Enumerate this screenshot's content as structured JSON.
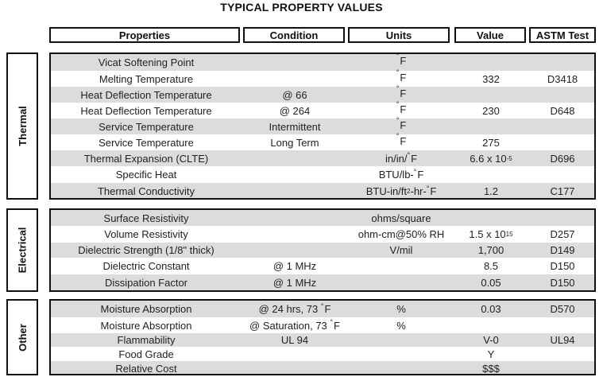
{
  "title": "TYPICAL PROPERTY VALUES",
  "headers": {
    "properties": "Properties",
    "condition": "Condition",
    "units": "Units",
    "value": "Value",
    "astm": "ASTM Test"
  },
  "sections": {
    "thermal": {
      "label": "Thermal",
      "rows": [
        {
          "property": "Vicat Softening Point",
          "condition": "",
          "units": "°F",
          "value": "",
          "astm": ""
        },
        {
          "property": "Melting Temperature",
          "condition": "",
          "units": "°F",
          "value": "332",
          "astm": "D3418"
        },
        {
          "property": "Heat Deflection Temperature",
          "condition": "@ 66",
          "units": "°F",
          "value": "",
          "astm": ""
        },
        {
          "property": "Heat Deflection Temperature",
          "condition": "@ 264",
          "units": "°F",
          "value": "230",
          "astm": "D648"
        },
        {
          "property": "Service Temperature",
          "condition": "Intermittent",
          "units": "°F",
          "value": "",
          "astm": ""
        },
        {
          "property": "Service Temperature",
          "condition": "Long Term",
          "units": "°F",
          "value": "275",
          "astm": ""
        },
        {
          "property": "Thermal Expansion (CLTE)",
          "condition": "",
          "units": "in/in/°F",
          "value": "6.6 x 10-5",
          "astm": "D696"
        },
        {
          "property": "Specific Heat",
          "condition": "",
          "units": "BTU/lb-°F",
          "value": "",
          "astm": ""
        },
        {
          "property": "Thermal Conductivity",
          "condition": "",
          "units": "BTU-in/ft2-hr-°F",
          "value": "1.2",
          "astm": "C177"
        }
      ]
    },
    "electrical": {
      "label": "Electrical",
      "rows": [
        {
          "property": "Surface Resistivity",
          "condition": "",
          "units": "ohms/square",
          "value": "",
          "astm": ""
        },
        {
          "property": "Volume Resistivity",
          "condition": "",
          "units": "ohm-cm@50% RH",
          "value": "1.5 x 1015",
          "astm": "D257"
        },
        {
          "property": "Dielectric Strength (1/8\" thick)",
          "condition": "",
          "units": "V/mil",
          "value": "1,700",
          "astm": "D149"
        },
        {
          "property": "Dielectric Constant",
          "condition": "@ 1 MHz",
          "units": "",
          "value": "8.5",
          "astm": "D150"
        },
        {
          "property": "Dissipation Factor",
          "condition": "@ 1 MHz",
          "units": "",
          "value": "0.05",
          "astm": "D150"
        }
      ]
    },
    "other": {
      "label": "Other",
      "rows": [
        {
          "property": "Moisture Absorption",
          "condition": "@ 24 hrs, 73 °F",
          "units": "%",
          "value": "0.03",
          "astm": "D570"
        },
        {
          "property": "Moisture Absorption",
          "condition": "@ Saturation, 73 °F",
          "units": "%",
          "value": "",
          "astm": ""
        },
        {
          "property": "Flammability",
          "condition": "UL 94",
          "units": "",
          "value": "V-0",
          "astm": "UL94"
        },
        {
          "property": "Food Grade",
          "condition": "",
          "units": "",
          "value": "Y",
          "astm": ""
        },
        {
          "property": "Relative Cost",
          "condition": "",
          "units": "",
          "value": "$$$",
          "astm": ""
        }
      ]
    }
  }
}
